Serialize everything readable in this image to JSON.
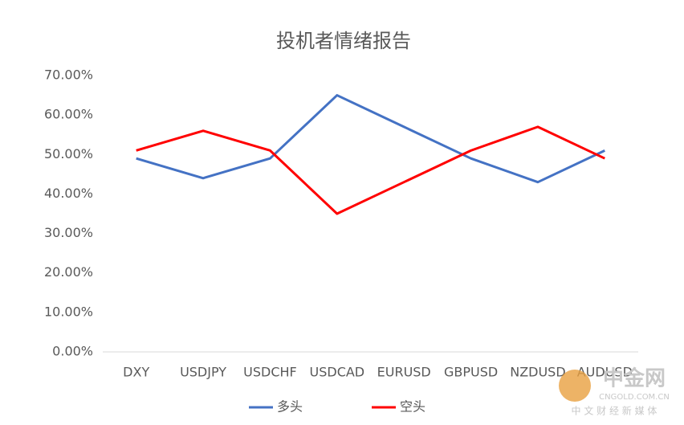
{
  "chart_data": {
    "type": "line",
    "title": "投机者情绪报告",
    "categories": [
      "DXY",
      "USDJPY",
      "USDCHF",
      "USDCAD",
      "EURUSD",
      "GBPUSD",
      "NZDUSD",
      "AUDUSD"
    ],
    "series": [
      {
        "name": "多头",
        "color": "#4472c4",
        "values": [
          49,
          44,
          49,
          65,
          57,
          49,
          43,
          51
        ]
      },
      {
        "name": "空头",
        "color": "#ff0000",
        "values": [
          51,
          56,
          51,
          35,
          43,
          51,
          57,
          49
        ]
      }
    ],
    "ylim": [
      0,
      70
    ],
    "yticks": [
      {
        "value": 0,
        "label": "0.00%"
      },
      {
        "value": 10,
        "label": "10.00%"
      },
      {
        "value": 20,
        "label": "20.00%"
      },
      {
        "value": 30,
        "label": "30.00%"
      },
      {
        "value": 40,
        "label": "40.00%"
      },
      {
        "value": 50,
        "label": "50.00%"
      },
      {
        "value": 60,
        "label": "60.00%"
      },
      {
        "value": 70,
        "label": "70.00%"
      }
    ],
    "grid": false,
    "legend": "bottom"
  },
  "watermark": {
    "name": "中金网",
    "domain": "CNGOLD.COM.CN",
    "slogan": "中 文 财 经 新 媒 体"
  }
}
